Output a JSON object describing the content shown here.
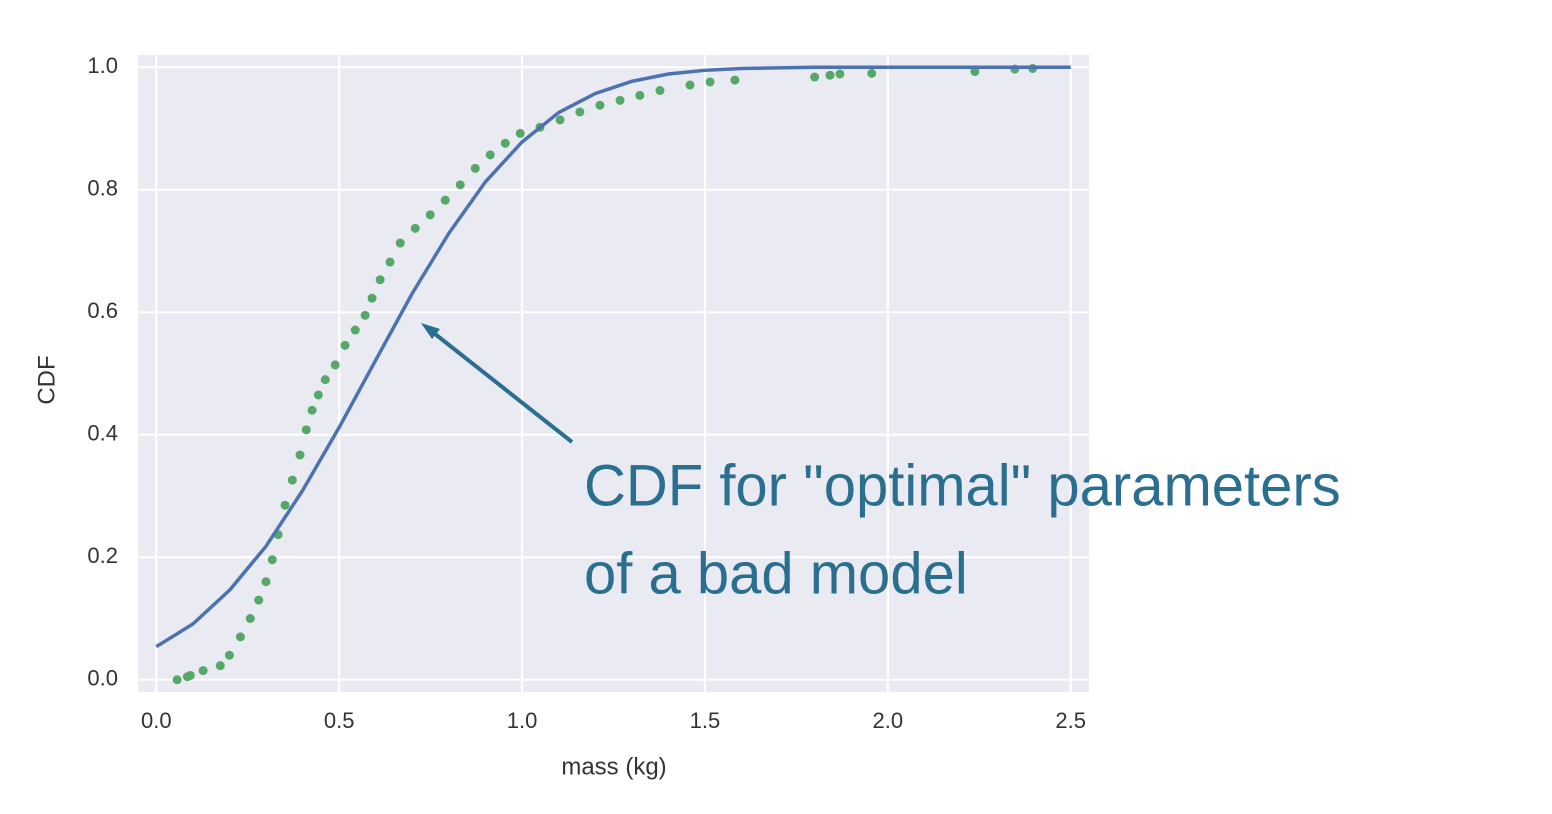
{
  "chart_data": {
    "type": "line",
    "xlabel": "mass (kg)",
    "ylabel": "CDF",
    "annotation": [
      "CDF for \"optimal\" parameters",
      "of a bad model"
    ],
    "annotation_color": "#2a6f8f",
    "background": "#eaeaf2",
    "grid": true,
    "xlim": [
      -0.05,
      2.55
    ],
    "ylim": [
      -0.02,
      1.02
    ],
    "xticks": [
      {
        "value": 0,
        "label": "0.0"
      },
      0.5,
      {
        "value": 1,
        "label": "1.0"
      },
      1.5,
      {
        "value": 2,
        "label": "2.0"
      },
      2.5
    ],
    "yticks": [
      {
        "value": 0,
        "label": "0.0"
      },
      0.2,
      0.4,
      0.6,
      0.8,
      {
        "value": 1,
        "label": "1.0"
      }
    ],
    "series": [
      {
        "type": "scatter",
        "color": "#55a868",
        "x": [
          0.057,
          0.085,
          0.093,
          0.128,
          0.175,
          0.2,
          0.23,
          0.257,
          0.28,
          0.3,
          0.317,
          0.333,
          0.352,
          0.372,
          0.393,
          0.41,
          0.426,
          0.443,
          0.462,
          0.489,
          0.516,
          0.544,
          0.571,
          0.59,
          0.612,
          0.639,
          0.667,
          0.708,
          0.749,
          0.79,
          0.831,
          0.872,
          0.913,
          0.954,
          0.995,
          1.049,
          1.104,
          1.158,
          1.213,
          1.268,
          1.322,
          1.377,
          1.459,
          1.514,
          1.582,
          1.8,
          1.842,
          1.869,
          1.956,
          2.238,
          2.347,
          2.396
        ],
        "values": [
          0.0,
          0.005,
          0.007,
          0.015,
          0.023,
          0.04,
          0.07,
          0.1,
          0.13,
          0.16,
          0.196,
          0.237,
          0.285,
          0.326,
          0.367,
          0.408,
          0.44,
          0.465,
          0.49,
          0.514,
          0.546,
          0.571,
          0.595,
          0.623,
          0.653,
          0.682,
          0.713,
          0.737,
          0.759,
          0.783,
          0.808,
          0.835,
          0.857,
          0.876,
          0.892,
          0.902,
          0.914,
          0.927,
          0.938,
          0.946,
          0.954,
          0.962,
          0.971,
          0.976,
          0.979,
          0.984,
          0.987,
          0.989,
          0.99,
          0.993,
          0.997,
          0.998
        ]
      },
      {
        "type": "line",
        "color": "#4c72b0",
        "x": [
          0,
          0.1,
          0.2,
          0.3,
          0.4,
          0.5,
          0.6,
          0.7,
          0.8,
          0.9,
          1.0,
          1.1,
          1.2,
          1.3,
          1.4,
          1.5,
          1.6,
          1.7,
          1.8,
          1.9,
          2.0,
          2.1,
          2.2,
          2.3,
          2.4,
          2.5
        ],
        "values": [
          0.054,
          0.091,
          0.146,
          0.218,
          0.309,
          0.412,
          0.522,
          0.631,
          0.729,
          0.813,
          0.878,
          0.926,
          0.957,
          0.977,
          0.989,
          0.995,
          0.998,
          0.999,
          1.0,
          1.0,
          1.0,
          1.0,
          1.0,
          1.0,
          1.0,
          1.0
        ]
      }
    ]
  }
}
